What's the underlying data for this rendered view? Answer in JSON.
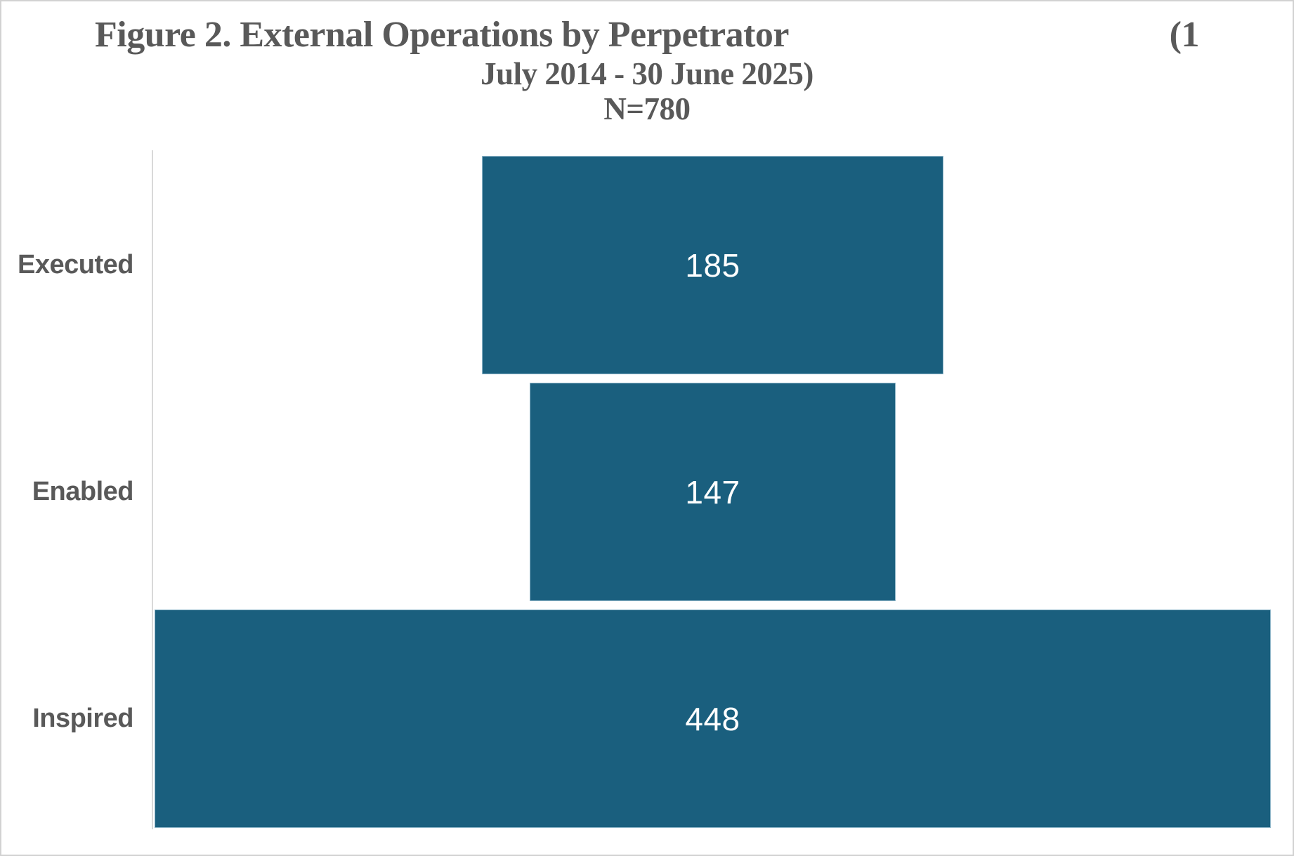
{
  "figure": {
    "title": {
      "line1_left": "Figure 2. External Operations by Perpetrator",
      "line1_right": "(1",
      "line2": "July 2014 - 30 June 2025)",
      "line3": "N=780"
    }
  },
  "chart_data": {
    "type": "bar",
    "variant": "horizontal-centered-funnel",
    "title": "Figure 2. External Operations by Perpetrator (1 July 2014 - 30 June 2025)",
    "sample_size_label": "N=780",
    "sample_size": 780,
    "categories": [
      "Executed",
      "Enabled",
      "Inspired"
    ],
    "values": [
      185,
      147,
      448
    ],
    "category_order": "top-to-bottom",
    "xlim": [
      0,
      448
    ],
    "grid": false,
    "legend": false,
    "data_labels_position": "center",
    "colors": {
      "bar_fill": "#1a5f7e",
      "bar_edge": "#8fb6c9",
      "value_label": "#ffffff",
      "category_label": "#595959",
      "title_text": "#595959",
      "axis_line": "#d9d9d9",
      "background": "#ffffff",
      "frame_border": "#d2d2d2"
    }
  }
}
